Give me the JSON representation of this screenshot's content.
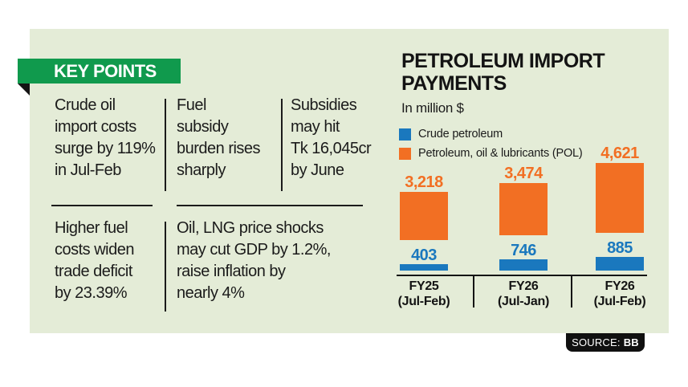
{
  "key_points": {
    "header": "KEY POINTS",
    "items": [
      [
        "Crude oil",
        "import costs",
        "surge by 119%",
        "in Jul-Feb"
      ],
      [
        "Fuel",
        "subsidy",
        "burden rises",
        "sharply"
      ],
      [
        "Subsidies",
        "may hit",
        "Tk 16,045cr",
        "by June"
      ],
      [
        "Higher fuel",
        "costs widen",
        "trade deficit",
        "by 23.39%"
      ],
      [
        "Oil, LNG price shocks",
        "may cut GDP by 1.2%,",
        "raise inflation by",
        "nearly 4%"
      ]
    ]
  },
  "chart_data": {
    "type": "bar",
    "title": [
      "PETROLEUM IMPORT",
      "PAYMENTS"
    ],
    "unit_label": "In million $",
    "legend_position": "top-left",
    "grid": false,
    "ylim": [
      0,
      5000
    ],
    "categories": [
      [
        "FY25",
        "(Jul-Feb)"
      ],
      [
        "FY26",
        "(Jul-Jan)"
      ],
      [
        "FY26",
        "(Jul-Feb)"
      ]
    ],
    "series": [
      {
        "name": "Crude petroleum",
        "color": "#1a78be",
        "values": [
          403,
          746,
          885
        ],
        "labels": [
          "403",
          "746",
          "885"
        ]
      },
      {
        "name": "Petroleum, oil & lubricants (POL)",
        "color": "#f26f23",
        "values": [
          3218,
          3474,
          4621
        ],
        "labels": [
          "3,218",
          "3,474",
          "4,621"
        ]
      }
    ]
  },
  "source": {
    "label": "SOURCE:",
    "value": "BB"
  },
  "colors": {
    "panel_background": "#e4ecd7",
    "banner_green": "#109a4d",
    "crude_blue": "#1a78be",
    "pol_orange": "#f26f23",
    "text_dark": "#1b1b1b",
    "badge_black": "#101010"
  }
}
